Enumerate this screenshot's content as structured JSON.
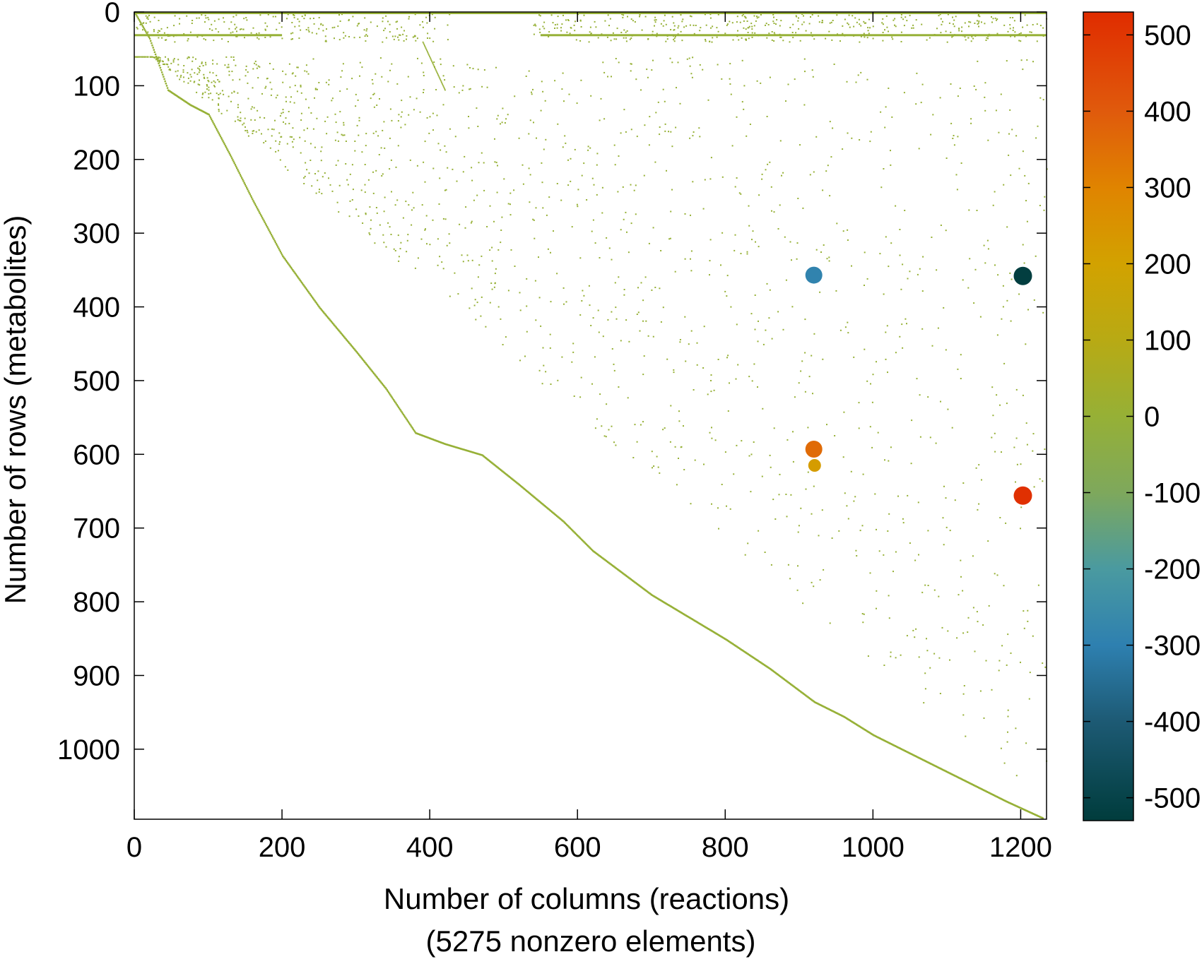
{
  "chart_data": {
    "type": "scatter",
    "title": "",
    "xlabel": "Number of columns (reactions)",
    "xlabel_line2": "(5275 nonzero elements)",
    "ylabel": "Number of rows (metabolites)",
    "xlim": [
      0,
      1235
    ],
    "ylim": [
      1095,
      0
    ],
    "y_inverted": true,
    "x_ticks": [
      0,
      200,
      400,
      600,
      800,
      1000,
      1200
    ],
    "y_ticks": [
      0,
      100,
      200,
      300,
      400,
      500,
      600,
      700,
      800,
      900,
      1000
    ],
    "grid": false,
    "colorbar": {
      "range": [
        -530,
        530
      ],
      "ticks": [
        500,
        400,
        300,
        200,
        100,
        0,
        -100,
        -200,
        -300,
        -400,
        -500
      ],
      "stops": [
        {
          "value": -530,
          "color": "#003c3c"
        },
        {
          "value": -400,
          "color": "#1d5a74"
        },
        {
          "value": -300,
          "color": "#2e80b0"
        },
        {
          "value": -200,
          "color": "#4a9aa0"
        },
        {
          "value": -100,
          "color": "#7ea85c"
        },
        {
          "value": 0,
          "color": "#96b036"
        },
        {
          "value": 100,
          "color": "#b8aa14"
        },
        {
          "value": 200,
          "color": "#d2a200"
        },
        {
          "value": 300,
          "color": "#e08400"
        },
        {
          "value": 400,
          "color": "#e05a0c"
        },
        {
          "value": 530,
          "color": "#e02c00"
        }
      ]
    },
    "highlighted_points": [
      {
        "x": 920,
        "y": 357,
        "value": -290
      },
      {
        "x": 1203,
        "y": 358,
        "value": -520
      },
      {
        "x": 920,
        "y": 593,
        "value": 360
      },
      {
        "x": 921,
        "y": 615,
        "value": 220
      },
      {
        "x": 1203,
        "y": 656,
        "value": 520
      }
    ],
    "sparse_pattern": {
      "diagonal_path": [
        [
          0,
          0
        ],
        [
          20,
          35
        ],
        [
          45,
          105
        ],
        [
          75,
          125
        ],
        [
          100,
          138
        ],
        [
          130,
          195
        ],
        [
          160,
          255
        ],
        [
          200,
          330
        ],
        [
          250,
          400
        ],
        [
          300,
          460
        ],
        [
          340,
          510
        ],
        [
          380,
          570
        ],
        [
          420,
          585
        ],
        [
          470,
          600
        ],
        [
          520,
          640
        ],
        [
          580,
          690
        ],
        [
          620,
          730
        ],
        [
          700,
          790
        ],
        [
          800,
          850
        ],
        [
          860,
          890
        ],
        [
          920,
          935
        ],
        [
          960,
          955
        ],
        [
          1000,
          980
        ],
        [
          1060,
          1010
        ],
        [
          1120,
          1040
        ],
        [
          1180,
          1070
        ],
        [
          1230,
          1093
        ]
      ],
      "secondary_diagonal": [
        [
          390,
          40
        ],
        [
          420,
          105
        ]
      ],
      "value": 0,
      "nonzero_count": 5275
    }
  }
}
